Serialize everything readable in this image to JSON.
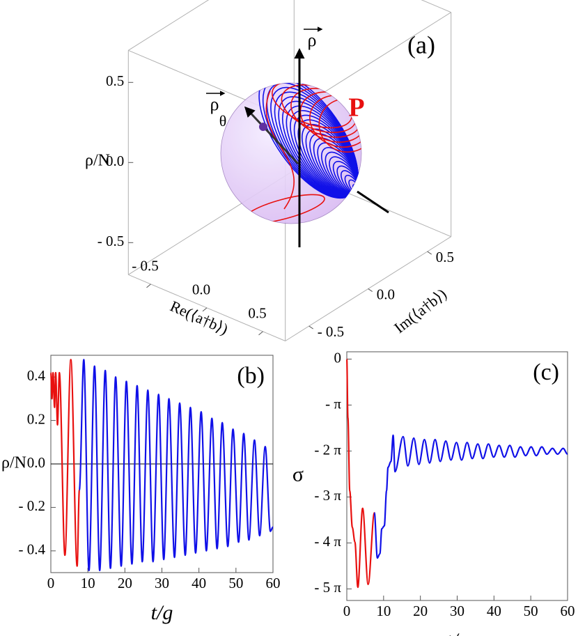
{
  "chart_data": [
    {
      "type": "bloch3d",
      "panel_label": "(a)",
      "xlabel": "Re(⟨a†b⟩)",
      "ylabel": "Im(⟨a†b⟩)",
      "zlabel": "ρ/N",
      "xlim": [
        -0.7,
        0.7
      ],
      "ylim": [
        -0.7,
        0.7
      ],
      "zlim": [
        -0.7,
        0.7
      ],
      "xticks": [
        {
          "value": -0.5,
          "label": "- 0.5"
        },
        {
          "value": 0,
          "label": "0.0"
        },
        0.5
      ],
      "yticks": [
        {
          "value": -0.5,
          "label": "- 0.5"
        },
        {
          "value": 0,
          "label": "0.0"
        },
        0.5
      ],
      "zticks": [
        {
          "value": -0.5,
          "label": "- 0.5"
        },
        {
          "value": 0,
          "label": "0.0"
        },
        0.5
      ],
      "annotations": [
        {
          "text": "ρ"
        },
        {
          "text": "ρ",
          "subscript": "θ"
        },
        {
          "text": "P",
          "color": "#e8100f"
        }
      ],
      "sphere_color": "#d8b8f2"
    },
    {
      "type": "line",
      "panel_label": "(b)",
      "xlabel": "t/g",
      "ylabel": "ρ/N",
      "xlim": [
        0,
        60
      ],
      "ylim": [
        -0.5,
        0.5
      ],
      "xticks": [
        0,
        10,
        20,
        30,
        40,
        50,
        60
      ],
      "yticks": [
        {
          "value": -0.4,
          "label": "- 0.4"
        },
        {
          "value": -0.2,
          "label": "- 0.2"
        },
        {
          "value": 0,
          "label": "0.0"
        },
        0.2,
        0.4
      ],
      "series": [
        {
          "color": "#e8100f",
          "x": [
            0,
            0.3,
            0.6,
            1.0,
            1.3,
            1.8,
            2.3,
            3.8,
            5.4,
            7.1,
            7.7
          ],
          "values": [
            0.42,
            0.3,
            0.42,
            0.26,
            0.42,
            0.18,
            0.42,
            -0.42,
            0.48,
            -0.47,
            -0.12
          ]
        },
        {
          "color": "#1010e8",
          "x": [
            7.7,
            8.9,
            10.3,
            11.8,
            13.2,
            14.7,
            16.1,
            17.5,
            19.0,
            20.4,
            21.9,
            23.3,
            24.7,
            26.2,
            27.6,
            29.1,
            30.5,
            31.9,
            33.4,
            34.8,
            36.3,
            37.7,
            39.1,
            40.6,
            42.0,
            43.5,
            44.9,
            46.3,
            47.8,
            49.2,
            50.7,
            52.1,
            53.5,
            55.0,
            56.4,
            57.9,
            59.3,
            60
          ],
          "values": [
            -0.12,
            0.48,
            -0.49,
            0.45,
            -0.49,
            0.43,
            -0.48,
            0.4,
            -0.47,
            0.38,
            -0.46,
            0.36,
            -0.45,
            0.34,
            -0.45,
            0.32,
            -0.44,
            0.3,
            -0.43,
            0.28,
            -0.42,
            0.26,
            -0.41,
            0.24,
            -0.4,
            0.21,
            -0.39,
            0.19,
            -0.38,
            0.16,
            -0.36,
            0.14,
            -0.35,
            0.11,
            -0.33,
            0.08,
            -0.31,
            -0.29
          ]
        }
      ]
    },
    {
      "type": "line",
      "panel_label": "(c)",
      "xlabel": "t/g",
      "ylabel": "σ",
      "xlim": [
        0,
        60
      ],
      "ylim": [
        -16.5,
        0.5
      ],
      "xticks": [
        0,
        10,
        20,
        30,
        40,
        50,
        60
      ],
      "yticks": [
        {
          "value": -15.708,
          "label": "- 5 π"
        },
        {
          "value": -12.566,
          "label": "- 4 π"
        },
        {
          "value": -9.4248,
          "label": "- 3 π"
        },
        {
          "value": -6.2832,
          "label": "- 2 π"
        },
        {
          "value": -3.1416,
          "label": "- π"
        },
        0
      ],
      "series": [
        {
          "color": "#e8100f",
          "x": [
            0,
            0.3,
            0.8,
            1.5,
            2.2,
            3.0,
            4.3,
            5.8,
            7.5
          ],
          "values": [
            0,
            -4.0,
            -9.0,
            -11.5,
            -12.5,
            -15.6,
            -10.2,
            -15.4,
            -10.5
          ]
        },
        {
          "color": "#1010e8",
          "x": [
            7.5,
            8.3,
            9.0,
            9.5,
            10.2,
            10.8,
            11.2,
            12.0,
            12.6,
            13.1,
            15.3,
            16.6,
            18.2,
            19.6,
            21.1,
            22.5,
            24.0,
            25.4,
            26.9,
            28.3,
            29.8,
            31.2,
            32.7,
            34.1,
            35.6,
            37.0,
            38.5,
            39.9,
            41.4,
            42.8,
            44.3,
            45.7,
            47.2,
            48.6,
            50.1,
            51.5,
            53.0,
            54.4,
            55.9,
            57.3,
            58.8,
            60
          ],
          "values": [
            -10.5,
            -13.6,
            -13.3,
            -11.6,
            -11.4,
            -9.0,
            -7.4,
            -7.0,
            -5.2,
            -7.7,
            -5.3,
            -7.3,
            -5.4,
            -7.2,
            -5.5,
            -7.1,
            -5.5,
            -7.0,
            -5.6,
            -6.9,
            -5.7,
            -6.9,
            -5.7,
            -6.8,
            -5.8,
            -6.8,
            -5.8,
            -6.7,
            -5.9,
            -6.7,
            -5.9,
            -6.7,
            -6.0,
            -6.6,
            -6.0,
            -6.6,
            -6.0,
            -6.5,
            -6.1,
            -6.5,
            -6.1,
            -6.5
          ]
        }
      ]
    }
  ]
}
